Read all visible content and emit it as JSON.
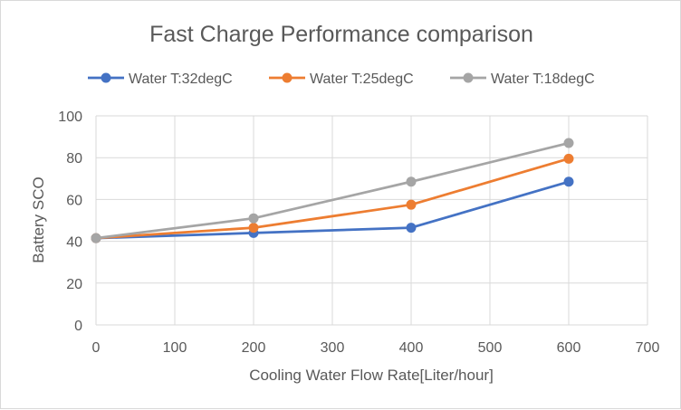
{
  "chart_data": {
    "type": "line",
    "title": "Fast Charge Performance  comparison",
    "xlabel": "Cooling Water Flow Rate[Liter/hour]",
    "ylabel": "Battery SCO",
    "xlim": [
      0,
      700
    ],
    "ylim": [
      0,
      100
    ],
    "x_ticks": [
      "0",
      "100",
      "200",
      "300",
      "400",
      "500",
      "600",
      "700"
    ],
    "y_ticks": [
      "0",
      "20",
      "40",
      "60",
      "80",
      "100"
    ],
    "grid": true,
    "legend_position": "top",
    "series": [
      {
        "name": "Water T:32degC",
        "color": "#4472c4",
        "x": [
          0,
          200,
          400,
          600
        ],
        "y": [
          41.5,
          44,
          46.5,
          68.5
        ]
      },
      {
        "name": "Water T:25degC",
        "color": "#ed7d31",
        "x": [
          0,
          200,
          400,
          600
        ],
        "y": [
          41.5,
          46.5,
          57.5,
          79.5
        ]
      },
      {
        "name": "Water T:18degC",
        "color": "#a5a5a5",
        "x": [
          0,
          200,
          400,
          600
        ],
        "y": [
          41.5,
          51,
          68.5,
          87
        ]
      }
    ]
  }
}
